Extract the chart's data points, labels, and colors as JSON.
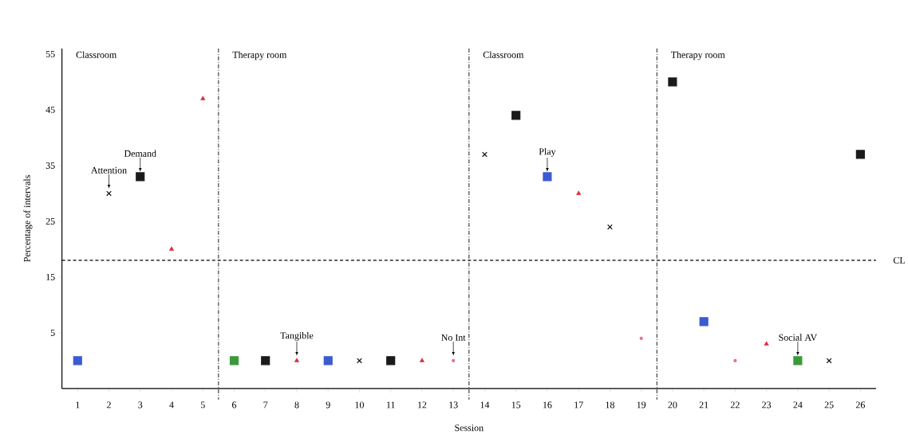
{
  "chart_data": {
    "type": "scatter",
    "xlabel": "Session",
    "ylabel": "Percentage of intervals",
    "xlim": [
      0.5,
      26.5
    ],
    "ylim": [
      -5,
      56
    ],
    "xticks": [
      1,
      2,
      3,
      4,
      5,
      6,
      7,
      8,
      9,
      10,
      11,
      12,
      13,
      14,
      15,
      16,
      17,
      18,
      19,
      20,
      21,
      22,
      23,
      24,
      25,
      26
    ],
    "yticks": [
      5,
      15,
      25,
      35,
      45,
      55
    ],
    "series": [
      {
        "color": "#111111",
        "marker": "cross",
        "x": [
          2,
          10,
          14,
          18,
          25
        ],
        "values": [
          30,
          0,
          37,
          24,
          0
        ]
      },
      {
        "color": "#1a1a1a",
        "marker": "square",
        "x": [
          3,
          7,
          11,
          15,
          20,
          26
        ],
        "values": [
          33,
          0,
          0,
          44,
          50,
          37
        ]
      },
      {
        "color": "#3b5bd0",
        "marker": "square",
        "x": [
          1,
          9,
          16,
          21
        ],
        "values": [
          0,
          0,
          33,
          7
        ]
      },
      {
        "color": "#e0303a",
        "marker": "triangle",
        "x": [
          4,
          5,
          8,
          12,
          17,
          23
        ],
        "values": [
          20,
          47,
          0,
          0,
          30,
          3
        ]
      },
      {
        "color": "#e86aa0",
        "marker": "circle",
        "x": [
          13,
          19,
          22
        ],
        "values": [
          0,
          4,
          0
        ]
      },
      {
        "color": "#3a9a3a",
        "marker": "square",
        "x": [
          6,
          24
        ],
        "values": [
          0,
          0
        ]
      }
    ],
    "ref_lines": [
      {
        "axis": "y",
        "value": 18,
        "label": "CL",
        "line_style": "dashed"
      },
      {
        "axis": "x",
        "value": 5.5,
        "line_style": "dashdotted"
      },
      {
        "axis": "x",
        "value": 13.5,
        "line_style": "dashdotted"
      },
      {
        "axis": "x",
        "value": 19.5,
        "line_style": "dashdotted"
      }
    ],
    "annotations": [
      "Classroom",
      "Therapy room",
      "Classroom",
      "Therapy room",
      {
        "text": "Attention",
        "x": 2,
        "y": 30
      },
      {
        "text": "Demand",
        "x": 3,
        "y": 33
      },
      {
        "text": "Play",
        "x": 16,
        "y": 33
      },
      {
        "text": "Tangible",
        "x": 8,
        "y": 0
      },
      {
        "text": "No Int",
        "x": 13,
        "y": 0
      },
      {
        "text": "Social AV",
        "x": 24,
        "y": 0
      }
    ]
  }
}
